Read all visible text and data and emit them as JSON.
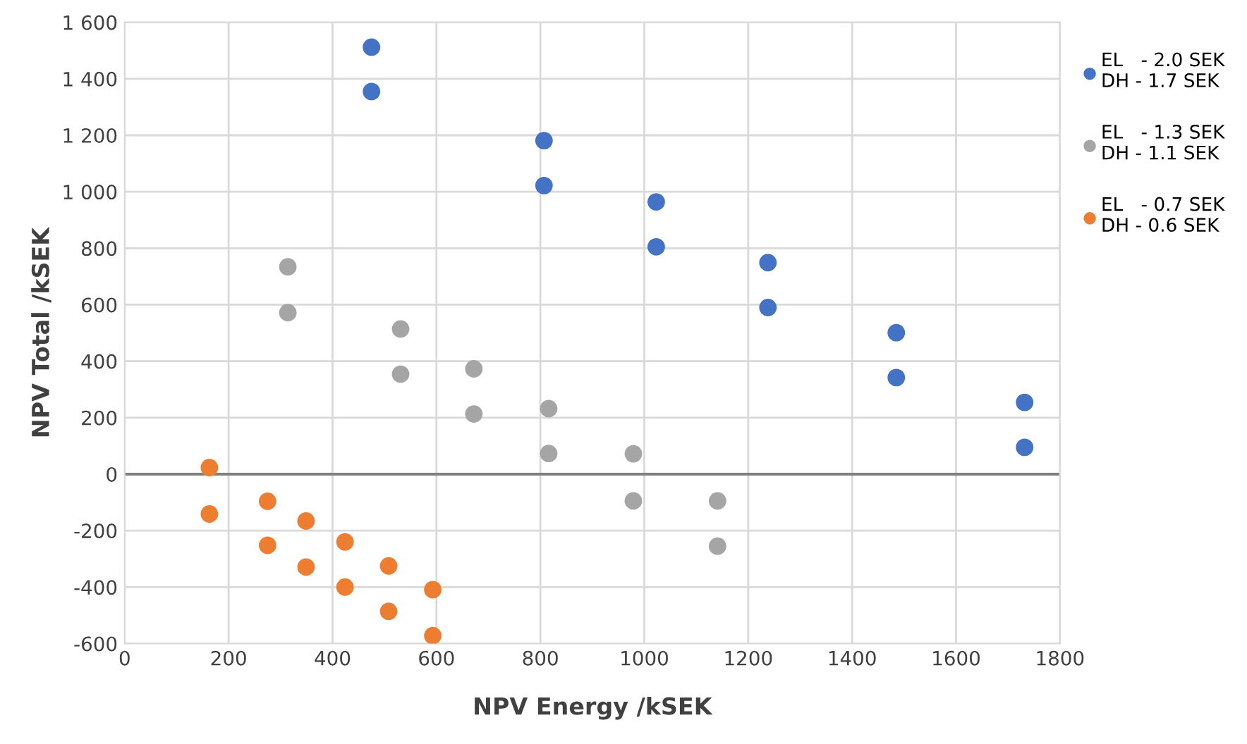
{
  "chart_data": {
    "type": "scatter",
    "xlabel": "NPV Energy /kSEK",
    "ylabel": "NPV Total /kSEK",
    "series": [
      {
        "name": "EL   - 2.0 SEK\nDH - 1.7 SEK",
        "color": "#4472c4",
        "x": [
          475,
          475,
          807,
          807,
          1023,
          1023,
          1238,
          1238,
          1485,
          1485,
          1732,
          1732
        ],
        "values": [
          1512,
          1355,
          1181,
          1022,
          964,
          805,
          749,
          590,
          501,
          342,
          254,
          95
        ]
      },
      {
        "name": "EL   - 1.3 SEK\nDH - 1.1 SEK",
        "color": "#a5a5a5",
        "x": [
          314,
          314,
          531,
          531,
          672,
          672,
          816,
          816,
          979,
          979,
          1141,
          1141
        ],
        "values": [
          734,
          572,
          514,
          354,
          373,
          213,
          232,
          73,
          72,
          -95,
          -95,
          -255
        ]
      },
      {
        "name": "EL   - 0.7 SEK\nDH - 0.6 SEK",
        "color": "#ed7d31",
        "x": [
          163,
          163,
          275,
          275,
          349,
          349,
          424,
          424,
          508,
          508,
          593,
          593
        ],
        "values": [
          23,
          -141,
          -96,
          -252,
          -166,
          -329,
          -240,
          -400,
          -325,
          -486,
          -409,
          -572
        ]
      }
    ],
    "xlim": [
      0,
      1800
    ],
    "xticks": [
      0,
      200,
      400,
      600,
      800,
      1000,
      1200,
      1400,
      1600,
      1800
    ],
    "ylim": [
      -600,
      1600
    ],
    "yticks": [
      -600,
      -400,
      -200,
      0,
      200,
      400,
      600,
      800,
      {
        "value": 1000,
        "label": "1 000"
      },
      {
        "value": 1200,
        "label": "1 200"
      },
      {
        "value": 1400,
        "label": "1 400"
      },
      {
        "value": 1600,
        "label": "1 600"
      }
    ],
    "ref_lines": [
      {
        "axis": "y",
        "value": 0,
        "color": "#7f7f7f"
      }
    ],
    "grid": true,
    "legend": "right",
    "marker": "circle"
  }
}
